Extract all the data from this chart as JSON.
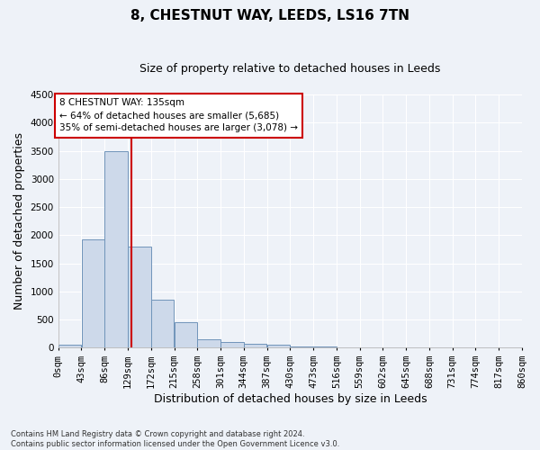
{
  "title": "8, CHESTNUT WAY, LEEDS, LS16 7TN",
  "subtitle": "Size of property relative to detached houses in Leeds",
  "xlabel": "Distribution of detached houses by size in Leeds",
  "ylabel": "Number of detached properties",
  "bar_color": "#cdd9ea",
  "bar_edge_color": "#7094ba",
  "bin_edges": [
    0,
    43,
    86,
    129,
    172,
    215,
    258,
    301,
    344,
    387,
    430,
    473,
    516,
    559,
    602,
    645,
    688,
    731,
    774,
    817,
    860
  ],
  "bar_heights": [
    45,
    1920,
    3500,
    1790,
    850,
    460,
    155,
    100,
    70,
    55,
    28,
    18,
    8,
    4,
    2,
    2,
    1,
    0,
    0,
    0
  ],
  "property_size": 135,
  "vline_color": "#cc0000",
  "annotation_line1": "8 CHESTNUT WAY: 135sqm",
  "annotation_line2": "← 64% of detached houses are smaller (5,685)",
  "annotation_line3": "35% of semi-detached houses are larger (3,078) →",
  "annotation_box_color": "#ffffff",
  "annotation_box_edge": "#cc0000",
  "ylim": [
    0,
    4500
  ],
  "yticks": [
    0,
    500,
    1000,
    1500,
    2000,
    2500,
    3000,
    3500,
    4000,
    4500
  ],
  "footnote": "Contains HM Land Registry data © Crown copyright and database right 2024.\nContains public sector information licensed under the Open Government Licence v3.0.",
  "background_color": "#eef2f8",
  "grid_color": "#ffffff",
  "title_fontsize": 11,
  "subtitle_fontsize": 9,
  "axis_label_fontsize": 9,
  "tick_fontsize": 7.5,
  "annotation_fontsize": 7.5,
  "footnote_fontsize": 6
}
